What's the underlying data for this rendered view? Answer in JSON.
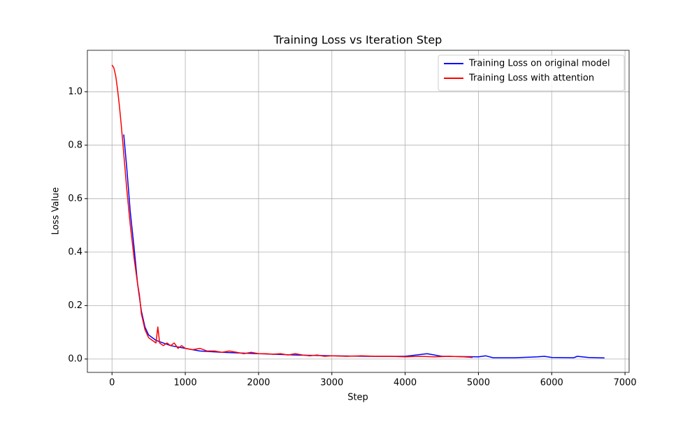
{
  "chart_data": {
    "type": "line",
    "title": "Training Loss vs Iteration Step",
    "x_label": "Step",
    "y_label": "Loss Value",
    "xlim": [
      -336,
      7056
    ],
    "ylim": [
      -0.05,
      1.155
    ],
    "xticks": [
      0,
      1000,
      2000,
      3000,
      4000,
      5000,
      6000,
      7000
    ],
    "yticks": [
      {
        "value": 0,
        "label": "0.0"
      },
      0.2,
      0.4,
      0.6,
      0.8,
      {
        "value": 1,
        "label": "1.0"
      }
    ],
    "grid": true,
    "legend": "upper-right",
    "series": [
      {
        "name": "Training Loss on original model",
        "color": "#0000ff",
        "x": [
          160,
          200,
          250,
          300,
          350,
          400,
          450,
          500,
          600,
          700,
          800,
          1000,
          1200,
          1500,
          2000,
          2500,
          3000,
          3500,
          4000,
          4300,
          4500,
          5000,
          5100,
          5200,
          5500,
          5800,
          5900,
          6000,
          6300,
          6350,
          6500,
          6720
        ],
        "values": [
          0.84,
          0.72,
          0.55,
          0.42,
          0.28,
          0.18,
          0.12,
          0.09,
          0.07,
          0.06,
          0.05,
          0.04,
          0.03,
          0.025,
          0.02,
          0.015,
          0.012,
          0.01,
          0.01,
          0.02,
          0.01,
          0.008,
          0.012,
          0.005,
          0.005,
          0.008,
          0.01,
          0.006,
          0.005,
          0.01,
          0.006,
          0.004
        ]
      },
      {
        "name": "Training Loss with attention",
        "color": "#ff0000",
        "x": [
          0,
          25,
          50,
          75,
          100,
          125,
          150,
          175,
          200,
          225,
          250,
          275,
          300,
          325,
          350,
          375,
          400,
          425,
          450,
          500,
          550,
          600,
          625,
          650,
          700,
          750,
          800,
          850,
          900,
          950,
          1000,
          1100,
          1200,
          1300,
          1400,
          1500,
          1600,
          1700,
          1800,
          1900,
          2000,
          2100,
          2200,
          2300,
          2400,
          2500,
          2600,
          2700,
          2800,
          2900,
          3000,
          3200,
          3400,
          3600,
          3800,
          4000,
          4200,
          4400,
          4600,
          4800,
          4920
        ],
        "values": [
          1.1,
          1.09,
          1.06,
          1.01,
          0.95,
          0.88,
          0.8,
          0.72,
          0.64,
          0.57,
          0.5,
          0.44,
          0.38,
          0.33,
          0.28,
          0.24,
          0.17,
          0.14,
          0.11,
          0.08,
          0.07,
          0.06,
          0.12,
          0.06,
          0.05,
          0.06,
          0.05,
          0.06,
          0.04,
          0.05,
          0.04,
          0.035,
          0.04,
          0.03,
          0.03,
          0.025,
          0.03,
          0.025,
          0.02,
          0.025,
          0.02,
          0.02,
          0.018,
          0.02,
          0.015,
          0.02,
          0.015,
          0.012,
          0.015,
          0.01,
          0.012,
          0.01,
          0.012,
          0.01,
          0.01,
          0.008,
          0.01,
          0.008,
          0.01,
          0.008,
          0.006
        ]
      }
    ]
  }
}
